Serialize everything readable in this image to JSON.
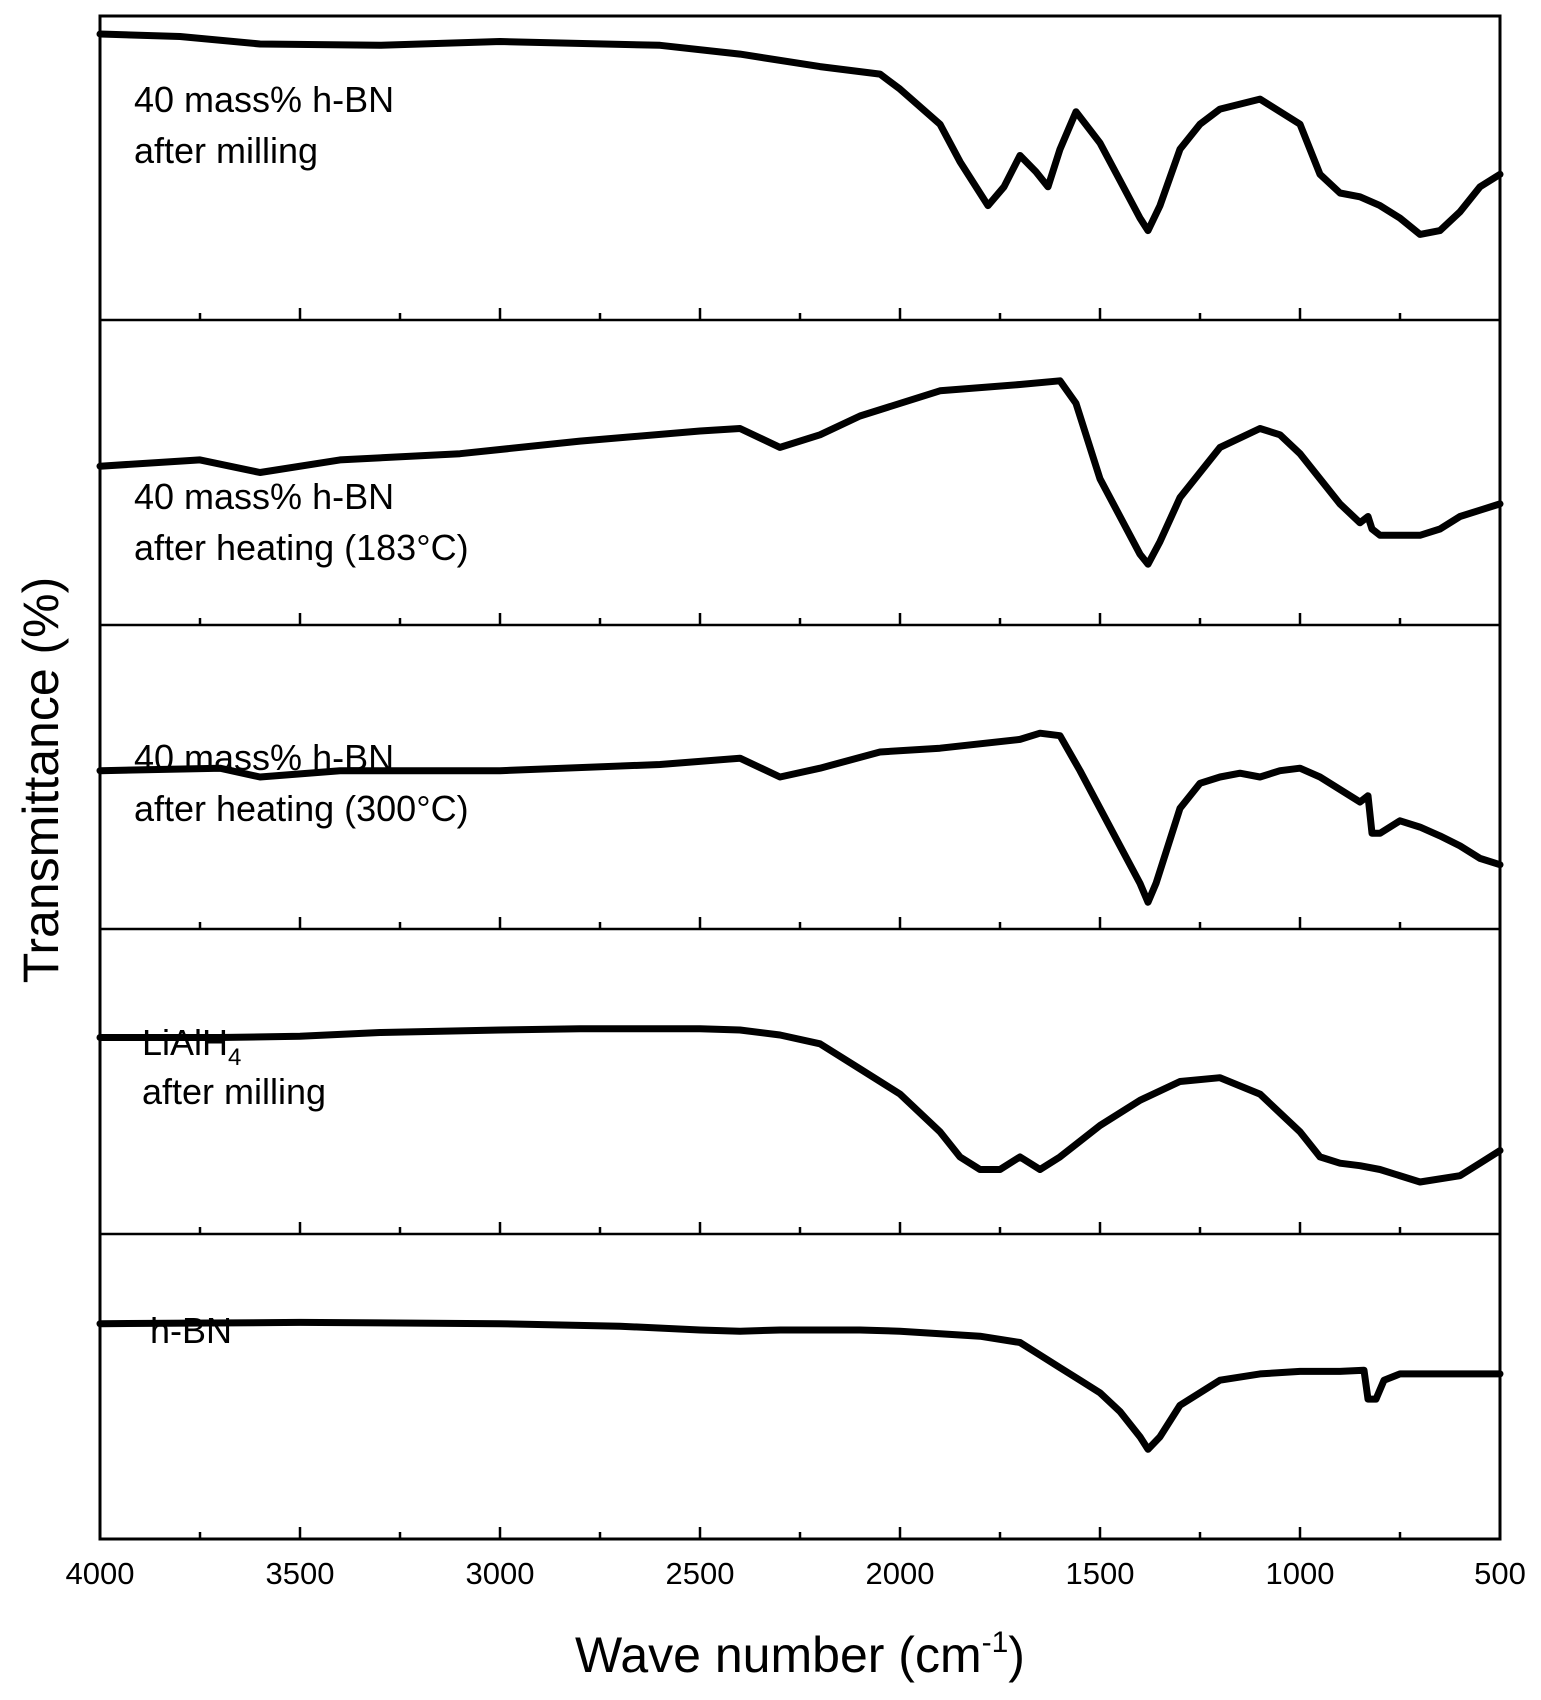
{
  "chart_data": {
    "type": "line",
    "xlabel": "Wave number (cm",
    "xlabel_superscript": "-1",
    "xlabel_close": ")",
    "ylabel": "Transmittance (%)",
    "xlim": [
      4000,
      500
    ],
    "x_reversed": true,
    "grid": false,
    "x_ticks": [
      "4000",
      "3500",
      "3000",
      "2500",
      "2000",
      "1500",
      "1000",
      "500"
    ],
    "x_tick_values": [
      4000,
      3500,
      3000,
      2500,
      2000,
      1500,
      1000,
      500
    ],
    "x_minor_tick_values": [
      3750,
      3250,
      2750,
      2250,
      1750,
      1250,
      750
    ],
    "panels": [
      {
        "name": "40 mass% h-BN after milling",
        "label_lines": [
          "40 mass% h-BN",
          "after milling"
        ],
        "points": [
          [
            4000,
            92
          ],
          [
            3800,
            90
          ],
          [
            3600,
            84
          ],
          [
            3300,
            83
          ],
          [
            3000,
            86
          ],
          [
            2600,
            83
          ],
          [
            2400,
            76
          ],
          [
            2200,
            66
          ],
          [
            2050,
            60
          ],
          [
            2000,
            48
          ],
          [
            1900,
            20
          ],
          [
            1850,
            -10
          ],
          [
            1780,
            -45
          ],
          [
            1740,
            -30
          ],
          [
            1700,
            -5
          ],
          [
            1660,
            -18
          ],
          [
            1630,
            -30
          ],
          [
            1600,
            0
          ],
          [
            1560,
            30
          ],
          [
            1500,
            5
          ],
          [
            1450,
            -25
          ],
          [
            1400,
            -55
          ],
          [
            1380,
            -65
          ],
          [
            1350,
            -45
          ],
          [
            1300,
            0
          ],
          [
            1250,
            20
          ],
          [
            1200,
            32
          ],
          [
            1100,
            40
          ],
          [
            1000,
            20
          ],
          [
            950,
            -20
          ],
          [
            900,
            -35
          ],
          [
            850,
            -38
          ],
          [
            800,
            -45
          ],
          [
            750,
            -55
          ],
          [
            700,
            -68
          ],
          [
            650,
            -65
          ],
          [
            600,
            -50
          ],
          [
            550,
            -30
          ],
          [
            500,
            -20
          ]
        ]
      },
      {
        "name": "40 mass% h-BN after heating (183°C)",
        "label_lines": [
          "40 mass% h-BN",
          "after heating  (183°C)"
        ],
        "points": [
          [
            4000,
            -10
          ],
          [
            3750,
            -5
          ],
          [
            3600,
            -15
          ],
          [
            3400,
            -5
          ],
          [
            3100,
            0
          ],
          [
            2800,
            10
          ],
          [
            2500,
            18
          ],
          [
            2400,
            20
          ],
          [
            2300,
            5
          ],
          [
            2200,
            15
          ],
          [
            2100,
            30
          ],
          [
            1900,
            50
          ],
          [
            1700,
            55
          ],
          [
            1600,
            58
          ],
          [
            1560,
            40
          ],
          [
            1500,
            -20
          ],
          [
            1450,
            -50
          ],
          [
            1400,
            -80
          ],
          [
            1380,
            -88
          ],
          [
            1350,
            -70
          ],
          [
            1300,
            -35
          ],
          [
            1200,
            5
          ],
          [
            1100,
            20
          ],
          [
            1050,
            15
          ],
          [
            1000,
            0
          ],
          [
            950,
            -20
          ],
          [
            900,
            -40
          ],
          [
            850,
            -55
          ],
          [
            830,
            -50
          ],
          [
            820,
            -60
          ],
          [
            800,
            -65
          ],
          [
            750,
            -65
          ],
          [
            700,
            -65
          ],
          [
            650,
            -60
          ],
          [
            600,
            -50
          ],
          [
            550,
            -45
          ],
          [
            500,
            -40
          ]
        ]
      },
      {
        "name": "40 mass% h-BN after heating (300°C)",
        "label_lines": [
          "40 mass% h-BN",
          "after heating  (300°C)"
        ],
        "points": [
          [
            4000,
            -10
          ],
          [
            3700,
            -8
          ],
          [
            3600,
            -15
          ],
          [
            3400,
            -10
          ],
          [
            3000,
            -10
          ],
          [
            2600,
            -5
          ],
          [
            2400,
            0
          ],
          [
            2300,
            -15
          ],
          [
            2200,
            -8
          ],
          [
            2050,
            5
          ],
          [
            1900,
            8
          ],
          [
            1700,
            15
          ],
          [
            1650,
            20
          ],
          [
            1600,
            18
          ],
          [
            1550,
            -10
          ],
          [
            1500,
            -40
          ],
          [
            1450,
            -70
          ],
          [
            1400,
            -100
          ],
          [
            1380,
            -115
          ],
          [
            1360,
            -100
          ],
          [
            1300,
            -40
          ],
          [
            1250,
            -20
          ],
          [
            1200,
            -15
          ],
          [
            1150,
            -12
          ],
          [
            1100,
            -15
          ],
          [
            1050,
            -10
          ],
          [
            1000,
            -8
          ],
          [
            950,
            -15
          ],
          [
            900,
            -25
          ],
          [
            850,
            -35
          ],
          [
            830,
            -30
          ],
          [
            820,
            -60
          ],
          [
            800,
            -60
          ],
          [
            750,
            -50
          ],
          [
            700,
            -55
          ],
          [
            650,
            -62
          ],
          [
            600,
            -70
          ],
          [
            550,
            -80
          ],
          [
            500,
            -85
          ]
        ]
      },
      {
        "name": "LiAlH4 after milling",
        "label_main": "LiAlH",
        "label_sub": "4",
        "label_line2": "after milling",
        "points": [
          [
            4000,
            20
          ],
          [
            3700,
            20
          ],
          [
            3500,
            21
          ],
          [
            3300,
            24
          ],
          [
            3000,
            26
          ],
          [
            2800,
            27
          ],
          [
            2500,
            27
          ],
          [
            2400,
            26
          ],
          [
            2300,
            22
          ],
          [
            2200,
            15
          ],
          [
            2100,
            -5
          ],
          [
            2000,
            -25
          ],
          [
            1900,
            -55
          ],
          [
            1850,
            -75
          ],
          [
            1800,
            -85
          ],
          [
            1750,
            -85
          ],
          [
            1700,
            -75
          ],
          [
            1650,
            -85
          ],
          [
            1600,
            -75
          ],
          [
            1500,
            -50
          ],
          [
            1400,
            -30
          ],
          [
            1300,
            -15
          ],
          [
            1200,
            -12
          ],
          [
            1100,
            -25
          ],
          [
            1000,
            -55
          ],
          [
            950,
            -75
          ],
          [
            900,
            -80
          ],
          [
            850,
            -82
          ],
          [
            800,
            -85
          ],
          [
            700,
            -95
          ],
          [
            600,
            -90
          ],
          [
            550,
            -80
          ],
          [
            500,
            -70
          ]
        ]
      },
      {
        "name": "h-BN",
        "label_lines": [
          "h-BN"
        ],
        "points": [
          [
            4000,
            35
          ],
          [
            3500,
            36
          ],
          [
            3000,
            35
          ],
          [
            2700,
            33
          ],
          [
            2500,
            30
          ],
          [
            2400,
            29
          ],
          [
            2300,
            30
          ],
          [
            2100,
            30
          ],
          [
            2000,
            29
          ],
          [
            1900,
            27
          ],
          [
            1800,
            25
          ],
          [
            1700,
            20
          ],
          [
            1650,
            10
          ],
          [
            1600,
            0
          ],
          [
            1550,
            -10
          ],
          [
            1500,
            -20
          ],
          [
            1450,
            -35
          ],
          [
            1400,
            -55
          ],
          [
            1380,
            -65
          ],
          [
            1350,
            -55
          ],
          [
            1300,
            -30
          ],
          [
            1200,
            -10
          ],
          [
            1100,
            -5
          ],
          [
            1000,
            -3
          ],
          [
            900,
            -3
          ],
          [
            840,
            -2
          ],
          [
            830,
            -25
          ],
          [
            810,
            -25
          ],
          [
            790,
            -10
          ],
          [
            750,
            -5
          ],
          [
            700,
            -5
          ],
          [
            500,
            -5
          ]
        ]
      }
    ]
  }
}
